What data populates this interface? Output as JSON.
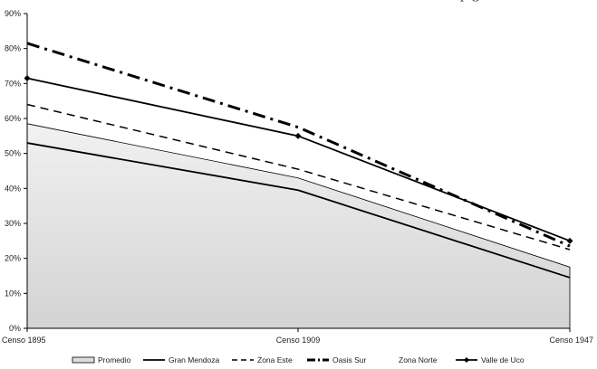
{
  "chart_data": {
    "type": "line",
    "categories": [
      "Censo 1895",
      "Censo 1909",
      "Censo 1947"
    ],
    "y_ticks": [
      "0%",
      "10%",
      "20%",
      "30%",
      "40%",
      "50%",
      "60%",
      "70%",
      "80%",
      "90%"
    ],
    "ylim": [
      0,
      90
    ],
    "grid": false,
    "legend_position": "bottom",
    "series": [
      {
        "name": "Promedio",
        "values": [
          58.5,
          43,
          17.5
        ],
        "style": "area",
        "color": "#dcdcdc"
      },
      {
        "name": "Gran Mendoza",
        "values": [
          53,
          39.5,
          14.5
        ],
        "style": "solid",
        "color": "#000000"
      },
      {
        "name": "Zona Este",
        "values": [
          64,
          45.5,
          22.5
        ],
        "style": "dashed",
        "color": "#000000"
      },
      {
        "name": "Oasis Sur",
        "values": [
          81.5,
          57.5,
          23.5
        ],
        "style": "dashdot",
        "color": "#000000"
      },
      {
        "name": "Zona Norte",
        "values": [
          null,
          null,
          null
        ],
        "style": "none",
        "color": "#000000"
      },
      {
        "name": "Valle de Uco",
        "values": [
          71.5,
          55,
          25
        ],
        "style": "diamond",
        "color": "#000000"
      }
    ]
  },
  "top_fragment": "p   g"
}
